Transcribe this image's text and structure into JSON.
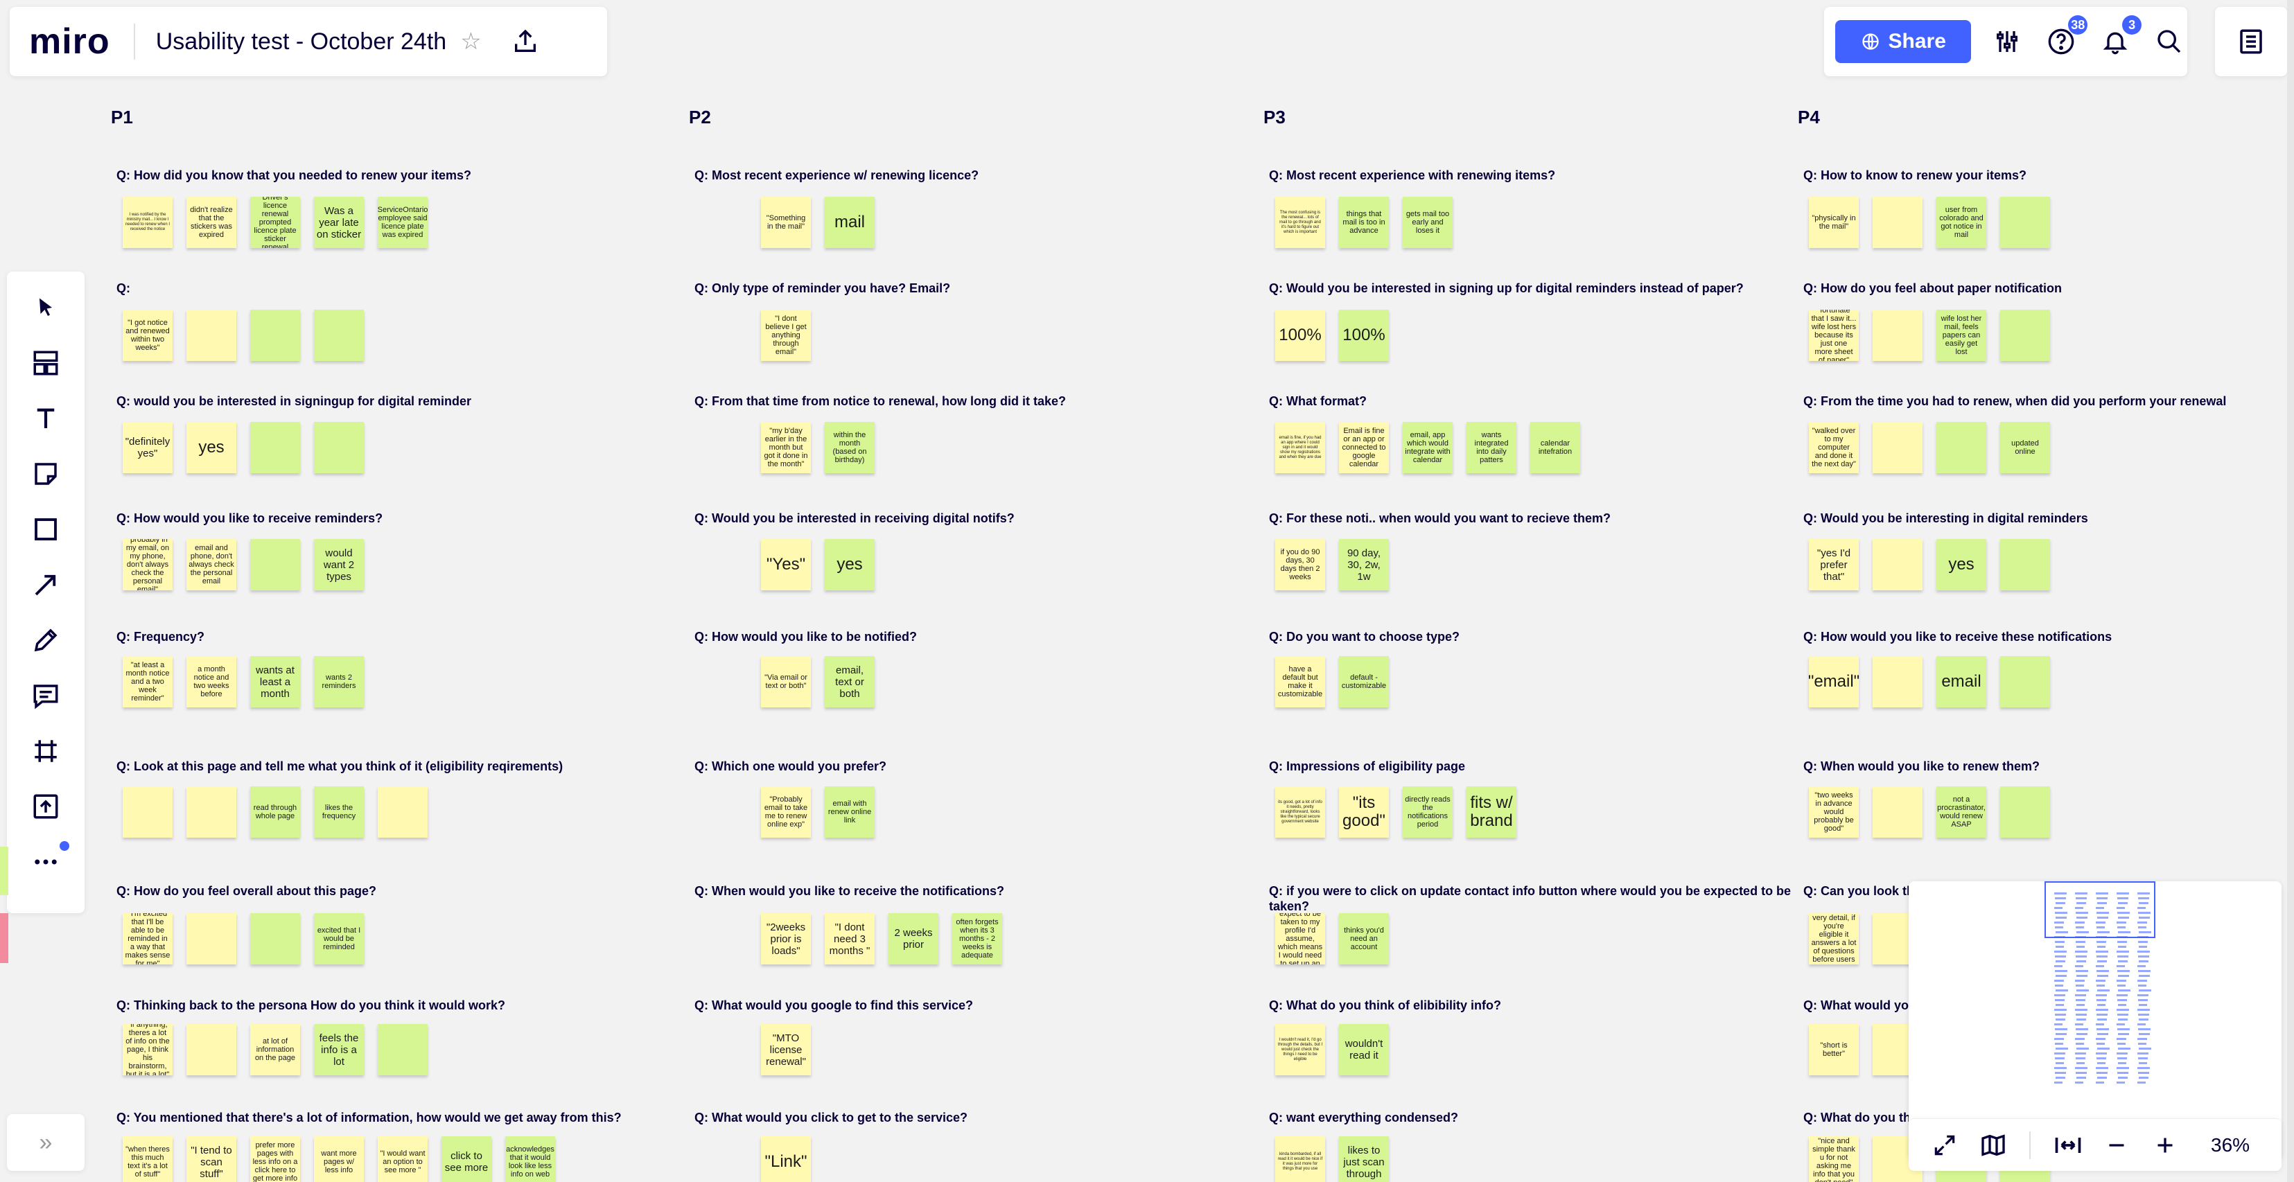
{
  "app": {
    "logo": "miro",
    "board_title": "Usability test - October 24th"
  },
  "topbar": {
    "share_label": "Share",
    "help_badge": "38",
    "notif_badge": "3"
  },
  "columns": [
    {
      "id": "P1",
      "label": "P1"
    },
    {
      "id": "P2",
      "label": "P2"
    },
    {
      "id": "P3",
      "label": "P3"
    },
    {
      "id": "P4",
      "label": "P4"
    }
  ],
  "rows": [
    {
      "P1": {
        "q": "Q: How did you know that you needed to renew your items?",
        "notes": [
          {
            "c": "y",
            "t": "I was notified by the ministry mail... I know I needed to renew when I received the notice",
            "s": "sm"
          },
          {
            "c": "y",
            "t": "didn't realize that the stickers was expired",
            "s": "md"
          },
          {
            "c": "g",
            "t": "Driver's licence renewal prompted licence plate sticker renewal",
            "s": "md"
          },
          {
            "c": "g",
            "t": "Was a year late on sticker",
            "s": "lg"
          },
          {
            "c": "g",
            "t": "ServiceOntario employee said licence plate was expired",
            "s": "md"
          }
        ]
      },
      "P2": {
        "q": "Q: Most recent experience w/ renewing licence?",
        "notes": [
          {
            "c": "y",
            "t": "\"Something in the mail\"",
            "s": "md"
          },
          {
            "c": "g",
            "t": "mail",
            "s": "xl"
          }
        ]
      },
      "P3": {
        "q": "Q: Most recent experience with renewing items?",
        "notes": [
          {
            "c": "y",
            "t": "The most confusing is the renewal... lots of mail to go through and it's hard to figure out which is important",
            "s": "sm"
          },
          {
            "c": "g",
            "t": "things that mail is too in advance",
            "s": "md"
          },
          {
            "c": "g",
            "t": "gets mail too early and loses it",
            "s": "md"
          }
        ]
      },
      "P4": {
        "q": "Q: How to know to renew your items?",
        "notes": [
          {
            "c": "y",
            "t": "\"physically in the mail\"",
            "s": "md"
          },
          {
            "c": "y",
            "t": "",
            "s": "md"
          },
          {
            "c": "g",
            "t": "user from colorado and got notice in mail",
            "s": "md"
          },
          {
            "c": "g",
            "t": "",
            "s": "md"
          }
        ]
      }
    },
    {
      "P1": {
        "q": "Q:",
        "notes": [
          {
            "c": "y",
            "t": "\"I got notice and renewed within two weeks\"",
            "s": "md"
          },
          {
            "c": "y",
            "t": "",
            "s": "md"
          },
          {
            "c": "g",
            "t": "",
            "s": "md"
          },
          {
            "c": "g",
            "t": "",
            "s": "md"
          }
        ]
      },
      "P2": {
        "q": "Q: Only type of reminder you have? Email?",
        "notes": [
          {
            "c": "y",
            "t": "\"I dont believe I get anything through email\"",
            "s": "md"
          }
        ]
      },
      "P3": {
        "q": "Q: Would you be interested in signing up for digital reminders instead of paper?",
        "notes": [
          {
            "c": "y",
            "t": "100%",
            "s": "xl"
          },
          {
            "c": "g",
            "t": "100%",
            "s": "xl"
          }
        ]
      },
      "P4": {
        "q": "Q: How do you feel about paper notification",
        "notes": [
          {
            "c": "y",
            "t": "\"fortunate that I saw it... wife lost hers because its just one more sheet of paper\"",
            "s": "md"
          },
          {
            "c": "y",
            "t": "",
            "s": "md"
          },
          {
            "c": "g",
            "t": "wife lost her mail, feels papers can easily get lost",
            "s": "md"
          },
          {
            "c": "g",
            "t": "",
            "s": "md"
          }
        ]
      }
    },
    {
      "P1": {
        "q": "Q: would you be interested in signingup for digital reminder",
        "notes": [
          {
            "c": "y",
            "t": "\"definitely yes\"",
            "s": "lg"
          },
          {
            "c": "y",
            "t": "yes",
            "s": "xl"
          },
          {
            "c": "g",
            "t": "",
            "s": "md"
          },
          {
            "c": "g",
            "t": "",
            "s": "md"
          }
        ]
      },
      "P2": {
        "q": "Q: From that time from notice to renewal, how long did it take?",
        "notes": [
          {
            "c": "y",
            "t": "\"my b'day earlier in the month but got it done in the month\"",
            "s": "md"
          },
          {
            "c": "g",
            "t": "within the month (based on birthday)",
            "s": "md"
          }
        ]
      },
      "P3": {
        "q": "Q: What format?",
        "notes": [
          {
            "c": "y",
            "t": "email is fine, if you had an app where I could sign in and it would show my registrations and when they are due",
            "s": "sm"
          },
          {
            "c": "y",
            "t": "Email is fine or an app or connected to google calendar",
            "s": "md"
          },
          {
            "c": "g",
            "t": "email, app which would integrate with calendar",
            "s": "md"
          },
          {
            "c": "g",
            "t": "wants integrated into daily patters",
            "s": "md"
          },
          {
            "c": "g",
            "t": "calendar intefration",
            "s": "md"
          }
        ]
      },
      "P4": {
        "q": "Q: From the time you had to renew, when did you perform your renewal",
        "notes": [
          {
            "c": "y",
            "t": "\"walked over to my computer and done it the next day\"",
            "s": "md"
          },
          {
            "c": "y",
            "t": "",
            "s": "md"
          },
          {
            "c": "g",
            "t": "",
            "s": "md"
          },
          {
            "c": "g",
            "t": "updated online",
            "s": "md"
          }
        ]
      }
    },
    {
      "P1": {
        "q": "Q: How would you like to receive reminders?",
        "notes": [
          {
            "c": "y",
            "t": "\"probably in my email, on my phone, don't always check the personal email\"",
            "s": "md"
          },
          {
            "c": "y",
            "t": "email and phone, don't always check the personal email",
            "s": "md"
          },
          {
            "c": "g",
            "t": "",
            "s": "md"
          },
          {
            "c": "g",
            "t": "would want 2 types",
            "s": "lg"
          }
        ]
      },
      "P2": {
        "q": "Q: Would you be interested in receiving digital notifs?",
        "notes": [
          {
            "c": "y",
            "t": "\"Yes\"",
            "s": "xl"
          },
          {
            "c": "g",
            "t": "yes",
            "s": "xl"
          }
        ]
      },
      "P3": {
        "q": "Q: For these noti.. when would you want to recieve them?",
        "notes": [
          {
            "c": "y",
            "t": "if you do 90 days, 30 days then 2 weeks",
            "s": "md"
          },
          {
            "c": "g",
            "t": "90 day, 30, 2w, 1w",
            "s": "lg"
          }
        ]
      },
      "P4": {
        "q": "Q: Would you be interesting in digital reminders",
        "notes": [
          {
            "c": "y",
            "t": "\"yes I'd prefer that\"",
            "s": "lg"
          },
          {
            "c": "y",
            "t": "",
            "s": "md"
          },
          {
            "c": "g",
            "t": "yes",
            "s": "xl"
          },
          {
            "c": "g",
            "t": "",
            "s": "md"
          }
        ]
      }
    },
    {
      "P1": {
        "q": "Q: Frequency?",
        "notes": [
          {
            "c": "y",
            "t": "\"at least a month notice and a two week reminder\"",
            "s": "md"
          },
          {
            "c": "y",
            "t": "a month notice and two weeks before",
            "s": "md"
          },
          {
            "c": "g",
            "t": "wants at least a month",
            "s": "lg"
          },
          {
            "c": "g",
            "t": "wants 2 reminders",
            "s": "md"
          }
        ]
      },
      "P2": {
        "q": "Q: How would you like to be notified?",
        "notes": [
          {
            "c": "y",
            "t": "\"Via email or text or both\"",
            "s": "md"
          },
          {
            "c": "g",
            "t": "email, text or both",
            "s": "lg"
          }
        ]
      },
      "P3": {
        "q": "Q: Do you want to choose type?",
        "notes": [
          {
            "c": "y",
            "t": "have a default but make it customizable",
            "s": "md"
          },
          {
            "c": "g",
            "t": "default - customizable",
            "s": "md"
          }
        ]
      },
      "P4": {
        "q": "Q: How would you like to receive these notifications",
        "notes": [
          {
            "c": "y",
            "t": "\"email\"",
            "s": "xl"
          },
          {
            "c": "y",
            "t": "",
            "s": "md"
          },
          {
            "c": "g",
            "t": "email",
            "s": "xl"
          },
          {
            "c": "g",
            "t": "",
            "s": "md"
          }
        ]
      }
    },
    {
      "P1": {
        "q": "Q: Look at this page and tell me what you think of it (eligibility reqirements)",
        "notes": [
          {
            "c": "y",
            "t": "",
            "s": "md"
          },
          {
            "c": "y",
            "t": "",
            "s": "md"
          },
          {
            "c": "g",
            "t": "read through whole page",
            "s": "md"
          },
          {
            "c": "g",
            "t": "likes the frequency",
            "s": "md"
          },
          {
            "c": "y",
            "t": "",
            "s": "md"
          }
        ]
      },
      "P2": {
        "q": "Q: Which one would you prefer?",
        "notes": [
          {
            "c": "y",
            "t": "\"Probably email to take me to renew online exp\"",
            "s": "md"
          },
          {
            "c": "g",
            "t": "email with renew online link",
            "s": "md"
          }
        ]
      },
      "P3": {
        "q": "Q: Impressions of eligibility page",
        "notes": [
          {
            "c": "y",
            "t": "its good, got a lot of info it needs, pretty straightforward, looks like the typical secure government website",
            "s": "sm"
          },
          {
            "c": "y",
            "t": "\"its good\"",
            "s": "xl"
          },
          {
            "c": "g",
            "t": "directly reads the notifications period",
            "s": "md"
          },
          {
            "c": "g",
            "t": "fits w/ brand",
            "s": "xl"
          }
        ]
      },
      "P4": {
        "q": "Q: When would you like to renew them?",
        "notes": [
          {
            "c": "y",
            "t": "\"two weeks in advance would probably be good\"",
            "s": "md"
          },
          {
            "c": "y",
            "t": "",
            "s": "md"
          },
          {
            "c": "g",
            "t": "not a procrastinator, would renew ASAP",
            "s": "md"
          },
          {
            "c": "g",
            "t": "",
            "s": "md"
          }
        ]
      }
    },
    {
      "P1": {
        "q": "Q: How do you feel overall about this page?",
        "notes": [
          {
            "c": "y",
            "t": "\"I'm excited that I'll be able to be reminded in a way that makes sense for me\"",
            "s": "md"
          },
          {
            "c": "y",
            "t": "",
            "s": "md"
          },
          {
            "c": "g",
            "t": "",
            "s": "md"
          },
          {
            "c": "g",
            "t": "excited that I would be reminded",
            "s": "md"
          }
        ]
      },
      "P2": {
        "q": "Q: When would you like to receive the notifications?",
        "notes": [
          {
            "c": "y",
            "t": "\"2weeks prior is loads\"",
            "s": "lg"
          },
          {
            "c": "y",
            "t": "\"I dont need 3 months \"",
            "s": "lg"
          },
          {
            "c": "g",
            "t": "2 weeks prior",
            "s": "lg"
          },
          {
            "c": "g",
            "t": "often forgets when its 3 months - 2 weeks is adequate",
            "s": "md"
          }
        ]
      },
      "P3": {
        "q": "Q: if you were to click on update contact info button where would you be expected to be taken?",
        "notes": [
          {
            "c": "y",
            "t": "I would expect to be taken to my profile I'd assume, which means I would need to set up an account",
            "s": "md"
          },
          {
            "c": "g",
            "t": "thinks you'd need an account",
            "s": "md"
          }
        ]
      },
      "P4": {
        "q": "Q: Can you look th",
        "notes": [
          {
            "c": "y",
            "t": "\"I like the very detail, if you're eligible it answers a lot of questions before users have them\"",
            "s": "md"
          },
          {
            "c": "y",
            "t": "",
            "s": "md"
          },
          {
            "c": "g",
            "t": "",
            "s": "md"
          },
          {
            "c": "g",
            "t": "",
            "s": "md"
          }
        ]
      }
    },
    {
      "P1": {
        "q": "Q: Thinking back to the persona How do you think it would work?",
        "notes": [
          {
            "c": "y",
            "t": "\"if anything, theres a lot of info on the page, I think his brainstorm, but it is a lot\"",
            "s": "md"
          },
          {
            "c": "y",
            "t": "",
            "s": "md"
          },
          {
            "c": "y",
            "t": "at lot of information on the page",
            "s": "md"
          },
          {
            "c": "g",
            "t": "feels the info is a lot",
            "s": "lg"
          },
          {
            "c": "g",
            "t": "",
            "s": "md"
          }
        ]
      },
      "P2": {
        "q": "Q: What would you google to find this service?",
        "notes": [
          {
            "c": "y",
            "t": "\"MTO license renewal\"",
            "s": "lg"
          }
        ]
      },
      "P3": {
        "q": "Q: What do you think of elibibility info?",
        "notes": [
          {
            "c": "y",
            "t": "I wouldn't read it, I'd go through the details, but I would just check the things I need to be eligible",
            "s": "sm"
          },
          {
            "c": "g",
            "t": "wouldn't read it",
            "s": "lg"
          }
        ]
      },
      "P4": {
        "q": "Q: What would yo",
        "notes": [
          {
            "c": "y",
            "t": "\"short is better\"",
            "s": "md"
          },
          {
            "c": "y",
            "t": "",
            "s": "md"
          },
          {
            "c": "g",
            "t": "",
            "s": "md"
          },
          {
            "c": "g",
            "t": "",
            "s": "md"
          }
        ]
      }
    },
    {
      "P1": {
        "q": "Q: You mentioned that there's a lot of information, how would we get away from this?",
        "notes": [
          {
            "c": "y",
            "t": "\"when theres this much text it's a lot of stuff\"",
            "s": "md"
          },
          {
            "c": "y",
            "t": "\"I tend to scan stuff\"",
            "s": "lg"
          },
          {
            "c": "y",
            "t": "prefer more pages with less info on a click here to get more info",
            "s": "md"
          },
          {
            "c": "y",
            "t": "want more pages w/ less info",
            "s": "md"
          },
          {
            "c": "y",
            "t": "\"I would want an option to see more \"",
            "s": "md"
          },
          {
            "c": "g",
            "t": "click to see more",
            "s": "lg"
          },
          {
            "c": "g",
            "t": "acknowledges that it would look like less info on web",
            "s": "md"
          }
        ]
      },
      "P2": {
        "q": "Q: What would you click to get to the service?",
        "notes": [
          {
            "c": "y",
            "t": "\"Link\"",
            "s": "xl"
          }
        ]
      },
      "P3": {
        "q": "Q: want everything condensed?",
        "notes": [
          {
            "c": "y",
            "t": "kinda bombarded, if all read it it would be nice if it was just more for things that you use",
            "s": "sm"
          },
          {
            "c": "g",
            "t": "likes to just scan through",
            "s": "lg"
          }
        ]
      },
      "P4": {
        "q": "Q: What do you th",
        "notes": [
          {
            "c": "y",
            "t": "\"nice and simple thank u for not asking me info that you don't need\"",
            "s": "md"
          },
          {
            "c": "y",
            "t": "",
            "s": "md"
          },
          {
            "c": "g",
            "t": "",
            "s": "md"
          },
          {
            "c": "g",
            "t": "",
            "s": "md"
          }
        ]
      }
    }
  ],
  "minimap": {
    "zoom_level": "36%"
  },
  "icons": {
    "share": "globe-icon",
    "settings": "sliders-icon",
    "help": "question-icon",
    "notifications": "bell-icon",
    "search": "search-icon",
    "notes": "notes-icon",
    "star": "star-icon",
    "upload": "upload-icon"
  },
  "colors": {
    "accent": "#4262ff",
    "sticky_yellow": "#fff9b1",
    "sticky_green": "#d5f692"
  }
}
